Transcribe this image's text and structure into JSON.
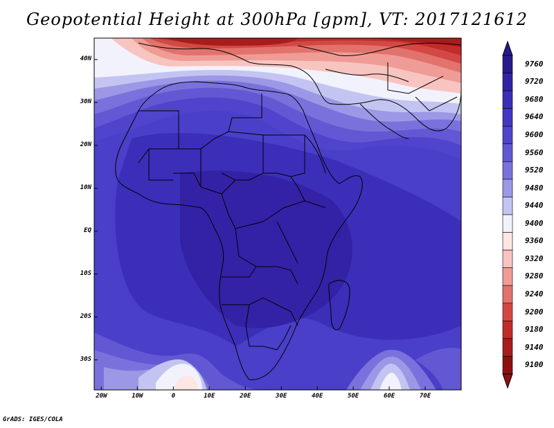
{
  "title": "Geopotential Height at 300hPa [gpm], VT: 2017121612",
  "credit": "GrADS: IGES/COLA",
  "map": {
    "region": "Africa",
    "lat_labels": [
      "40N",
      "30N",
      "20N",
      "10N",
      "EQ",
      "10S",
      "20S",
      "30S"
    ],
    "lat_values": [
      40,
      30,
      20,
      10,
      0,
      -10,
      -20,
      -30
    ],
    "lon_labels": [
      "20W",
      "10W",
      "0",
      "10E",
      "20E",
      "30E",
      "40E",
      "50E",
      "60E",
      "70E"
    ],
    "lon_values": [
      -20,
      -10,
      0,
      10,
      20,
      30,
      40,
      50,
      60,
      70
    ],
    "lon_range": [
      -22,
      80
    ],
    "lat_range": [
      -37,
      45
    ]
  },
  "colorbar": {
    "labels": [
      "9760",
      "9720",
      "9680",
      "9640",
      "9600",
      "9560",
      "9520",
      "9480",
      "9440",
      "9400",
      "9360",
      "9320",
      "9280",
      "9240",
      "9200",
      "9180",
      "9140",
      "9100"
    ],
    "colors": [
      "#271a8c",
      "#3322a6",
      "#3b2eb8",
      "#4436c4",
      "#5044cc",
      "#6358d4",
      "#7a72dc",
      "#9c98e6",
      "#c4c4f2",
      "#f2f2fc",
      "#fde6e4",
      "#f8c4c0",
      "#ef9c96",
      "#e2726c",
      "#d34844",
      "#c02c2a",
      "#a81c1c",
      "#8c1010"
    ]
  }
}
